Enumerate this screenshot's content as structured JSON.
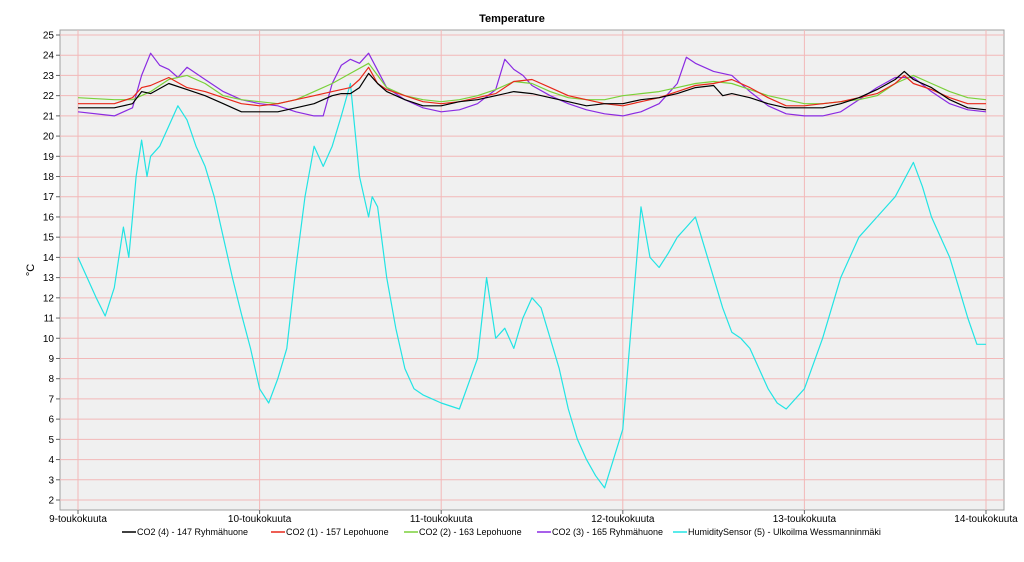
{
  "chart_data": {
    "type": "line",
    "title": "Temperature",
    "xlabel": "",
    "ylabel": "°C",
    "ylim": [
      2,
      25
    ],
    "yticks": [
      2,
      3,
      4,
      5,
      6,
      7,
      8,
      9,
      10,
      11,
      12,
      13,
      14,
      15,
      16,
      17,
      18,
      19,
      20,
      21,
      22,
      23,
      24,
      25
    ],
    "xlim": [
      0,
      5
    ],
    "xticks": [
      {
        "x": 0,
        "label": "9-toukokuuta"
      },
      {
        "x": 1,
        "label": "10-toukokuuta"
      },
      {
        "x": 2,
        "label": "11-toukokuuta"
      },
      {
        "x": 3,
        "label": "12-toukokuuta"
      },
      {
        "x": 4,
        "label": "13-toukokuuta"
      },
      {
        "x": 5,
        "label": "14-toukokuuta"
      }
    ],
    "grid": true,
    "legend": "bottom",
    "series": [
      {
        "name": "CO2 (4) - 147 Ryhmähuone",
        "color": "#000000",
        "x": [
          0,
          0.2,
          0.3,
          0.35,
          0.4,
          0.5,
          0.6,
          0.7,
          0.8,
          0.9,
          1.0,
          1.1,
          1.2,
          1.3,
          1.4,
          1.45,
          1.5,
          1.55,
          1.6,
          1.65,
          1.7,
          1.8,
          1.9,
          2.0,
          2.1,
          2.2,
          2.3,
          2.4,
          2.5,
          2.6,
          2.7,
          2.8,
          2.9,
          3.0,
          3.1,
          3.2,
          3.3,
          3.4,
          3.5,
          3.55,
          3.6,
          3.7,
          3.8,
          3.9,
          4.0,
          4.1,
          4.2,
          4.3,
          4.4,
          4.5,
          4.55,
          4.6,
          4.7,
          4.8,
          4.9,
          5.0
        ],
        "y": [
          21.4,
          21.4,
          21.6,
          22.2,
          22.1,
          22.6,
          22.3,
          22.0,
          21.6,
          21.2,
          21.2,
          21.2,
          21.4,
          21.6,
          22.0,
          22.1,
          22.1,
          22.4,
          23.1,
          22.6,
          22.2,
          21.8,
          21.5,
          21.5,
          21.7,
          21.8,
          22.0,
          22.2,
          22.1,
          21.9,
          21.7,
          21.5,
          21.6,
          21.6,
          21.8,
          21.9,
          22.1,
          22.4,
          22.5,
          22.0,
          22.1,
          21.9,
          21.6,
          21.4,
          21.4,
          21.4,
          21.6,
          21.9,
          22.3,
          22.8,
          23.2,
          22.8,
          22.4,
          21.8,
          21.4,
          21.3
        ]
      },
      {
        "name": "CO2 (1) - 157 Lepohuone",
        "color": "#e8281a",
        "x": [
          0,
          0.2,
          0.3,
          0.35,
          0.4,
          0.5,
          0.6,
          0.7,
          0.8,
          0.9,
          1.0,
          1.1,
          1.2,
          1.3,
          1.4,
          1.5,
          1.55,
          1.6,
          1.65,
          1.7,
          1.8,
          1.9,
          2.0,
          2.1,
          2.2,
          2.3,
          2.4,
          2.5,
          2.6,
          2.7,
          2.8,
          2.9,
          3.0,
          3.1,
          3.2,
          3.3,
          3.4,
          3.5,
          3.6,
          3.7,
          3.8,
          3.9,
          4.0,
          4.1,
          4.2,
          4.3,
          4.4,
          4.5,
          4.55,
          4.6,
          4.7,
          4.8,
          4.9,
          5.0
        ],
        "y": [
          21.6,
          21.6,
          21.9,
          22.4,
          22.5,
          22.9,
          22.4,
          22.2,
          21.9,
          21.6,
          21.5,
          21.6,
          21.8,
          22.0,
          22.2,
          22.4,
          22.8,
          23.4,
          22.6,
          22.3,
          22.0,
          21.7,
          21.6,
          21.7,
          21.9,
          22.1,
          22.7,
          22.8,
          22.4,
          22.0,
          21.8,
          21.6,
          21.5,
          21.7,
          21.9,
          22.2,
          22.5,
          22.6,
          22.8,
          22.4,
          21.9,
          21.5,
          21.5,
          21.6,
          21.7,
          21.9,
          22.1,
          22.6,
          23.0,
          22.6,
          22.3,
          21.9,
          21.6,
          21.6
        ]
      },
      {
        "name": "CO2 (2) - 163 Lepohuone",
        "color": "#7ad13a",
        "x": [
          0,
          0.2,
          0.3,
          0.4,
          0.5,
          0.6,
          0.7,
          0.8,
          0.9,
          1.0,
          1.1,
          1.2,
          1.3,
          1.4,
          1.5,
          1.6,
          1.65,
          1.7,
          1.8,
          1.9,
          2.0,
          2.1,
          2.2,
          2.3,
          2.4,
          2.5,
          2.6,
          2.7,
          2.8,
          2.9,
          3.0,
          3.1,
          3.2,
          3.3,
          3.4,
          3.5,
          3.6,
          3.7,
          3.8,
          3.9,
          4.0,
          4.1,
          4.2,
          4.3,
          4.4,
          4.5,
          4.6,
          4.7,
          4.8,
          4.9,
          5.0
        ],
        "y": [
          21.9,
          21.8,
          21.8,
          22.2,
          22.8,
          23.0,
          22.6,
          22.0,
          21.8,
          21.7,
          21.6,
          21.8,
          22.2,
          22.6,
          23.1,
          23.6,
          23.0,
          22.4,
          22.0,
          21.8,
          21.7,
          21.8,
          22.0,
          22.3,
          22.7,
          22.6,
          22.2,
          21.9,
          21.8,
          21.8,
          22.0,
          22.1,
          22.2,
          22.4,
          22.6,
          22.7,
          22.6,
          22.3,
          22.0,
          21.8,
          21.6,
          21.6,
          21.7,
          21.8,
          22.0,
          22.6,
          23.0,
          22.6,
          22.2,
          21.9,
          21.8
        ]
      },
      {
        "name": "CO2 (3) - 165 Ryhmähuone",
        "color": "#8a2be2",
        "x": [
          0,
          0.2,
          0.3,
          0.35,
          0.4,
          0.45,
          0.5,
          0.55,
          0.6,
          0.7,
          0.8,
          0.9,
          1.0,
          1.1,
          1.2,
          1.3,
          1.35,
          1.4,
          1.45,
          1.5,
          1.55,
          1.6,
          1.7,
          1.8,
          1.9,
          2.0,
          2.1,
          2.2,
          2.3,
          2.35,
          2.4,
          2.45,
          2.5,
          2.6,
          2.7,
          2.8,
          2.9,
          3.0,
          3.1,
          3.2,
          3.3,
          3.35,
          3.4,
          3.5,
          3.6,
          3.7,
          3.8,
          3.9,
          4.0,
          4.1,
          4.2,
          4.3,
          4.4,
          4.5,
          4.6,
          4.7,
          4.8,
          4.9,
          5.0
        ],
        "y": [
          21.2,
          21.0,
          21.4,
          23.0,
          24.1,
          23.5,
          23.3,
          22.9,
          23.4,
          22.8,
          22.2,
          21.8,
          21.6,
          21.5,
          21.2,
          21.0,
          21.0,
          22.6,
          23.5,
          23.8,
          23.6,
          24.1,
          22.4,
          21.8,
          21.4,
          21.2,
          21.3,
          21.6,
          22.3,
          23.8,
          23.3,
          23.0,
          22.5,
          22.0,
          21.6,
          21.3,
          21.1,
          21.0,
          21.2,
          21.6,
          22.6,
          23.9,
          23.6,
          23.2,
          23.0,
          22.2,
          21.5,
          21.1,
          21.0,
          21.0,
          21.2,
          21.8,
          22.4,
          22.9,
          22.9,
          22.2,
          21.6,
          21.3,
          21.2
        ]
      },
      {
        "name": "HumiditySensor (5) - Ulkoilma Wessmanninmäki",
        "color": "#22e4e4",
        "x": [
          0,
          0.1,
          0.15,
          0.2,
          0.25,
          0.28,
          0.3,
          0.32,
          0.35,
          0.38,
          0.4,
          0.45,
          0.5,
          0.55,
          0.6,
          0.65,
          0.7,
          0.75,
          0.8,
          0.85,
          0.9,
          0.95,
          1.0,
          1.05,
          1.1,
          1.15,
          1.2,
          1.25,
          1.3,
          1.35,
          1.4,
          1.45,
          1.5,
          1.55,
          1.6,
          1.62,
          1.65,
          1.7,
          1.75,
          1.8,
          1.85,
          1.9,
          1.95,
          2.0,
          2.1,
          2.2,
          2.25,
          2.3,
          2.35,
          2.4,
          2.45,
          2.5,
          2.55,
          2.6,
          2.65,
          2.7,
          2.75,
          2.8,
          2.85,
          2.9,
          3.0,
          3.1,
          3.15,
          3.2,
          3.25,
          3.3,
          3.35,
          3.4,
          3.45,
          3.5,
          3.55,
          3.6,
          3.65,
          3.7,
          3.75,
          3.8,
          3.85,
          3.9,
          4.0,
          4.1,
          4.2,
          4.3,
          4.4,
          4.5,
          4.6,
          4.65,
          4.7,
          4.75,
          4.8,
          4.85,
          4.9,
          4.95,
          5.0
        ],
        "y": [
          14.0,
          12.0,
          11.1,
          12.5,
          15.5,
          14.0,
          16.0,
          18.0,
          19.8,
          18.0,
          19.0,
          19.5,
          20.5,
          21.5,
          20.8,
          19.5,
          18.5,
          17.0,
          15.0,
          13.0,
          11.2,
          9.5,
          7.5,
          6.8,
          8.0,
          9.5,
          13.5,
          17.0,
          19.5,
          18.5,
          19.5,
          21.0,
          22.6,
          18.0,
          16.0,
          17.0,
          16.5,
          13.0,
          10.5,
          8.5,
          7.5,
          7.2,
          7.0,
          6.8,
          6.5,
          9.0,
          13.0,
          10.0,
          10.5,
          9.5,
          11.0,
          12.0,
          11.5,
          10.0,
          8.5,
          6.5,
          5.0,
          4.0,
          3.2,
          2.6,
          5.5,
          16.5,
          14.0,
          13.5,
          14.2,
          15.0,
          15.5,
          16.0,
          14.5,
          13.0,
          11.5,
          10.3,
          10.0,
          9.5,
          8.5,
          7.5,
          6.8,
          6.5,
          7.5,
          10.0,
          13.0,
          15.0,
          16.0,
          17.0,
          18.7,
          17.5,
          16.0,
          15.0,
          14.0,
          12.5,
          11.0,
          9.7,
          9.7
        ]
      }
    ]
  }
}
